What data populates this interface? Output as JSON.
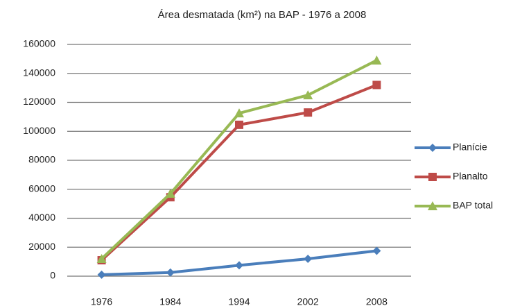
{
  "chart_data": {
    "type": "line",
    "title": "Área desmatada (km²) na BAP - 1976 a 2008",
    "categories": [
      "1976",
      "1984",
      "1994",
      "2002",
      "2008"
    ],
    "series": [
      {
        "name": "Planície",
        "color": "#4a7ebb",
        "marker": "diamond",
        "values": [
          1000,
          2500,
          7500,
          12000,
          17500
        ]
      },
      {
        "name": "Planalto",
        "color": "#be4b48",
        "marker": "square",
        "values": [
          11000,
          54500,
          104500,
          113000,
          132000
        ]
      },
      {
        "name": "BAP total",
        "color": "#98b954",
        "marker": "triangle",
        "values": [
          12000,
          57000,
          112500,
          125000,
          149000
        ]
      }
    ],
    "ylim": [
      0,
      160000
    ],
    "yticks": [
      0,
      20000,
      40000,
      60000,
      80000,
      100000,
      120000,
      140000,
      160000
    ],
    "grid": true,
    "legend": "right"
  }
}
